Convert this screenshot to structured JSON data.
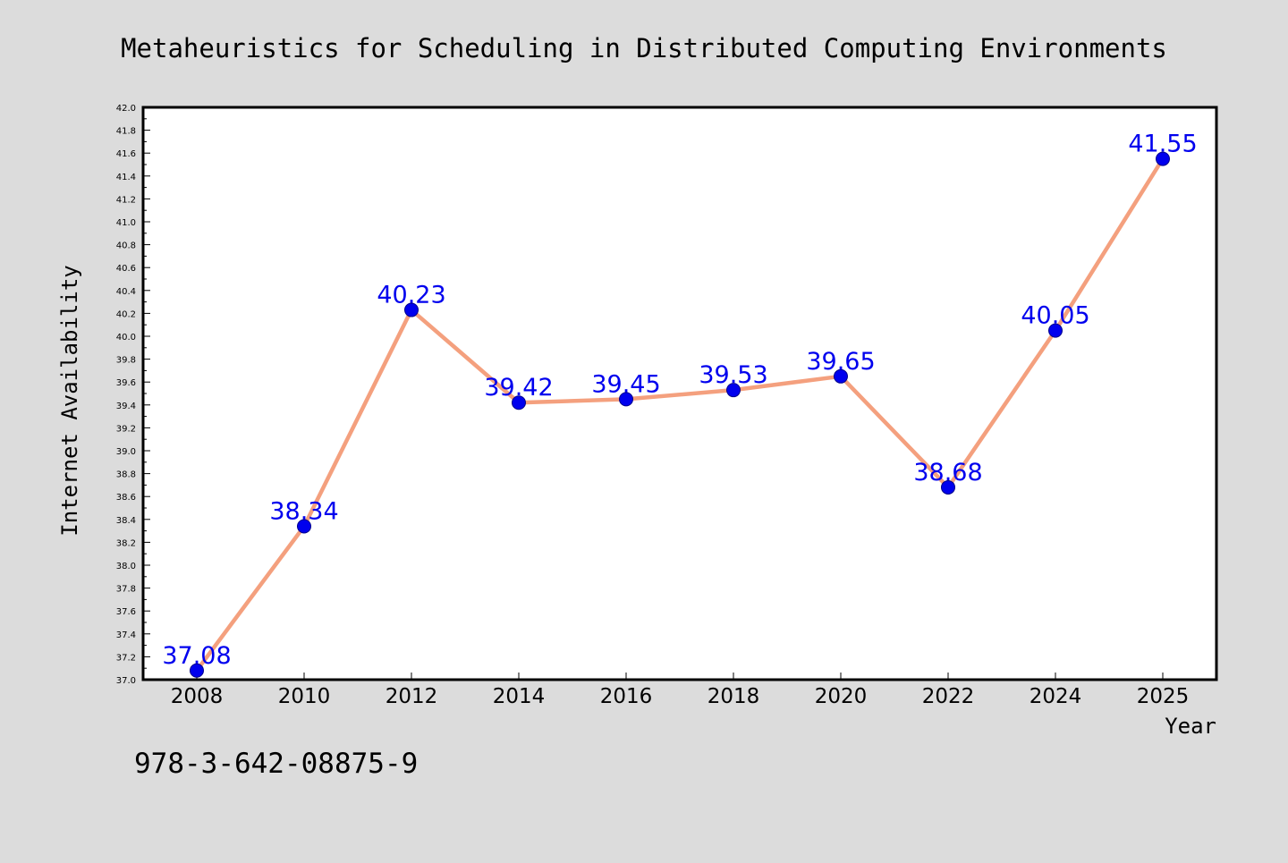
{
  "chart_data": {
    "type": "line",
    "title": "Metaheuristics for Scheduling in Distributed Computing Environments",
    "xlabel": "Year",
    "ylabel": "Internet Availability",
    "ylim": [
      37.0,
      42.0
    ],
    "y_ticks": [
      "37.0",
      "37.2",
      "37.4",
      "37.6",
      "37.8",
      "38.0",
      "38.2",
      "38.4",
      "38.6",
      "38.8",
      "39.0",
      "39.2",
      "39.4",
      "39.6",
      "39.8",
      "40.0",
      "40.2",
      "40.4",
      "40.6",
      "40.8",
      "41.0",
      "41.2",
      "41.4",
      "41.6",
      "41.8",
      "42.0"
    ],
    "categories": [
      "2008",
      "2010",
      "2012",
      "2014",
      "2016",
      "2018",
      "2020",
      "2022",
      "2024",
      "2025"
    ],
    "series": [
      {
        "values": [
          37.08,
          38.34,
          40.23,
          39.42,
          39.45,
          39.53,
          39.65,
          38.68,
          40.05,
          41.55
        ],
        "labels": [
          "37.08",
          "38.34",
          "40.23",
          "39.42",
          "39.45",
          "39.53",
          "39.65",
          "38.68",
          "40.05",
          "41.55"
        ]
      }
    ],
    "grid": false,
    "legend": "none",
    "colors": {
      "line": "#f4a07e",
      "marker": "#0000ee",
      "data_label": "#0000ee",
      "plot_background": "#ffffff",
      "page_background": "#dcdcdc"
    }
  },
  "footer": {
    "isbn": "978-3-642-08875-9"
  }
}
